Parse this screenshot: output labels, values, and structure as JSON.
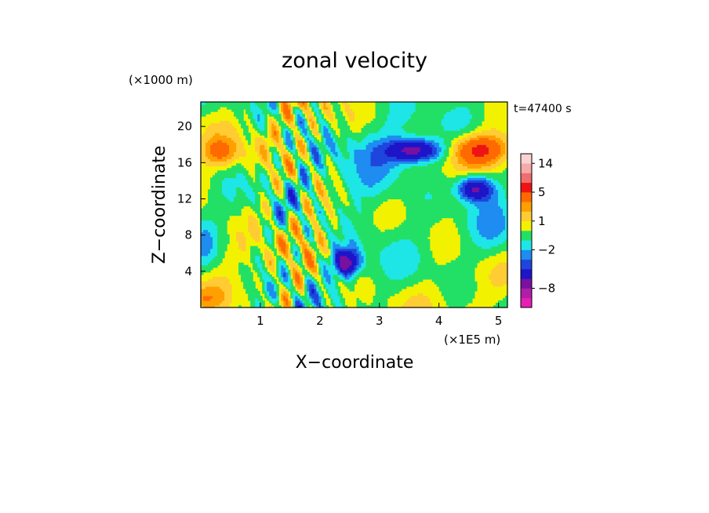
{
  "chart_data": {
    "type": "heatmap",
    "title": "zonal velocity",
    "xlabel": "X−coordinate",
    "ylabel": "Z−coordinate",
    "x_unit": "(×1E5 m)",
    "y_unit": "(×1000 m)",
    "time_label": "t=47400 s",
    "xlim": [
      0,
      5.15
    ],
    "ylim": [
      0,
      22.7
    ],
    "x_ticks": [
      1,
      2,
      3,
      4,
      5
    ],
    "y_ticks": [
      4,
      8,
      12,
      16,
      20
    ],
    "background_level": 0,
    "colorbar": {
      "levels": [
        -16,
        -12,
        -8,
        -6,
        -4,
        -3,
        -2,
        -1,
        0,
        1,
        2,
        3,
        5,
        8,
        11,
        14,
        17
      ],
      "colors": [
        "#e61eb4",
        "#b01ea8",
        "#7a10a0",
        "#1e14c8",
        "#1e46dc",
        "#1e8cf0",
        "#1ee6e6",
        "#22e066",
        "#f2f200",
        "#ffcc33",
        "#ffa000",
        "#ff6a00",
        "#ee1414",
        "#f06e6e",
        "#f5aaaa",
        "#fad2d2"
      ],
      "tick_labels": [
        "14",
        "5",
        "1",
        "−2",
        "−8"
      ],
      "tick_values": [
        14,
        5,
        1,
        -2,
        -8
      ]
    },
    "features": [
      {
        "kind": "blob",
        "x": 3.6,
        "y": 17.4,
        "rx": 0.45,
        "ry": 1.3,
        "value": -7
      },
      {
        "kind": "blob",
        "x": 4.6,
        "y": 13.2,
        "rx": 0.3,
        "ry": 1.4,
        "value": -7
      },
      {
        "kind": "blob",
        "x": 2.45,
        "y": 5.0,
        "rx": 0.22,
        "ry": 1.5,
        "value": -7
      },
      {
        "kind": "blob",
        "x": 4.7,
        "y": 17.5,
        "rx": 0.5,
        "ry": 1.6,
        "value": 5
      },
      {
        "kind": "blob",
        "x": 0.35,
        "y": 17.2,
        "rx": 0.3,
        "ry": 1.5,
        "value": 3
      },
      {
        "kind": "blob",
        "x": 0.0,
        "y": 1.0,
        "rx": 0.4,
        "ry": 1.4,
        "value": 2
      },
      {
        "kind": "band",
        "x": 1.6,
        "y": 12.0,
        "amp": 3.0,
        "wx": 0.06,
        "value": -5
      },
      {
        "kind": "band",
        "x": 1.4,
        "y": 10.0,
        "amp": 3.0,
        "wx": 0.08,
        "value": 2
      }
    ]
  }
}
